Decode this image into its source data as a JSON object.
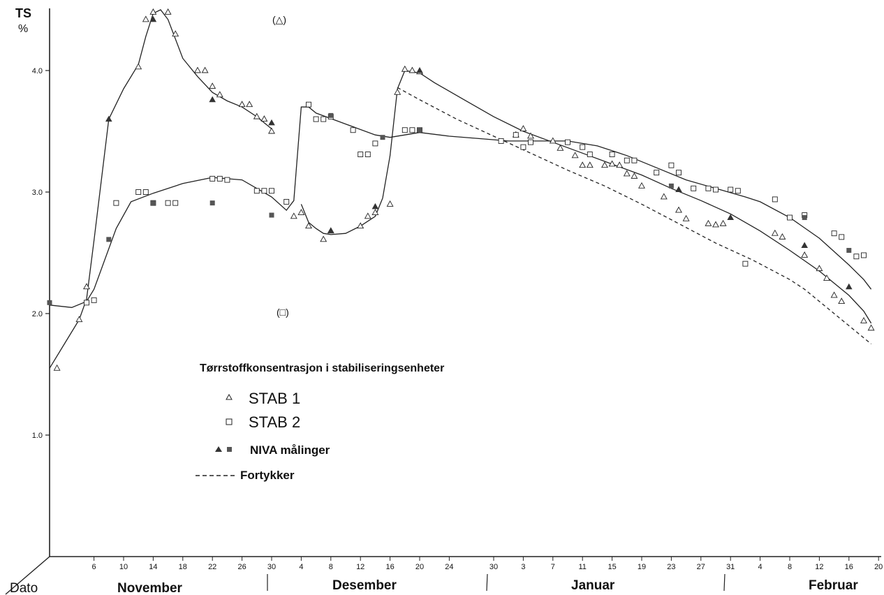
{
  "chart_data": {
    "type": "line",
    "ylabel": "TS",
    "yunit": "%",
    "ylim": [
      0,
      4.5
    ],
    "yticks": [
      "1.0",
      "2.0",
      "3.0",
      "4.0"
    ],
    "xlabel": "Dato",
    "xaxis_days": [
      0,
      105
    ],
    "months": [
      "November",
      "Desember",
      "Januar",
      "Februar"
    ],
    "day_ticks": [
      "6",
      "10",
      "14",
      "18",
      "22",
      "26",
      "30",
      "4",
      "8",
      "12",
      "16",
      "20",
      "24",
      "30",
      "3",
      "7",
      "11",
      "15",
      "19",
      "23",
      "27",
      "31",
      "4",
      "8",
      "12",
      "16",
      "20"
    ],
    "day_ticks_pos": [
      6,
      10,
      14,
      18,
      22,
      26,
      30,
      34,
      38,
      42,
      46,
      50,
      54,
      60,
      64,
      68,
      72,
      76,
      80,
      84,
      88,
      92,
      96,
      100,
      104,
      108,
      112
    ],
    "annotations": [
      "(△)",
      "(□)"
    ],
    "legend": {
      "title": "Tørrstoffkonsentrasjon i stabiliseringsenheter",
      "items": [
        {
          "symbol": "△",
          "label": "STAB 1"
        },
        {
          "symbol": "□",
          "label": "STAB 2"
        },
        {
          "symbol": "▲ ■",
          "label": "NIVA målinger"
        },
        {
          "symbol": "-----",
          "label": "Fortykker"
        }
      ]
    },
    "series": [
      {
        "name": "STAB 1",
        "marker": "triangle-open",
        "x": [
          1,
          4,
          5,
          12,
          13,
          14,
          16,
          17,
          20,
          21,
          22,
          23,
          26,
          27,
          28,
          29,
          30,
          33,
          34,
          35,
          37,
          38,
          42,
          43,
          44,
          46,
          47,
          48,
          49,
          50,
          63,
          64,
          65,
          68,
          69,
          71,
          72,
          73,
          75,
          76,
          77,
          78,
          79,
          80,
          83,
          85,
          86,
          89,
          90,
          91,
          98,
          99,
          102,
          104,
          105,
          106,
          107,
          110,
          111
        ],
        "y": [
          1.55,
          1.95,
          2.22,
          4.03,
          4.42,
          4.48,
          4.48,
          4.3,
          4.0,
          4.0,
          3.87,
          3.8,
          3.72,
          3.72,
          3.62,
          3.6,
          3.5,
          2.8,
          2.83,
          2.72,
          2.61,
          2.68,
          2.72,
          2.8,
          2.83,
          2.9,
          3.82,
          4.01,
          4.0,
          3.99,
          3.47,
          3.52,
          3.46,
          3.42,
          3.36,
          3.3,
          3.22,
          3.22,
          3.22,
          3.23,
          3.22,
          3.15,
          3.13,
          3.05,
          2.96,
          2.85,
          2.78,
          2.74,
          2.73,
          2.74,
          2.66,
          2.63,
          2.48,
          2.37,
          2.29,
          2.15,
          2.1,
          1.94,
          1.88
        ]
      },
      {
        "name": "STAB 2",
        "marker": "square-open",
        "x": [
          5,
          6,
          9,
          12,
          13,
          14,
          16,
          17,
          22,
          23,
          24,
          28,
          29,
          30,
          32,
          35,
          36,
          37,
          38,
          41,
          42,
          43,
          44,
          48,
          49,
          50,
          61,
          63,
          64,
          65,
          70,
          72,
          73,
          76,
          78,
          79,
          82,
          84,
          85,
          87,
          89,
          90,
          92,
          93,
          94,
          98,
          100,
          102,
          106,
          107,
          109,
          110
        ],
        "y": [
          2.09,
          2.11,
          2.91,
          3.0,
          3.0,
          2.91,
          2.91,
          2.91,
          3.11,
          3.11,
          3.1,
          3.01,
          3.01,
          3.01,
          2.92,
          3.72,
          3.6,
          3.6,
          3.62,
          3.51,
          3.31,
          3.31,
          3.4,
          3.51,
          3.51,
          3.51,
          3.42,
          3.47,
          3.37,
          3.41,
          3.41,
          3.37,
          3.31,
          3.31,
          3.26,
          3.26,
          3.16,
          3.22,
          3.16,
          3.03,
          3.03,
          3.02,
          3.02,
          3.01,
          2.41,
          2.94,
          2.79,
          2.81,
          2.66,
          2.63,
          2.47,
          2.48
        ]
      },
      {
        "name": "NIVA målinger (STAB 1)",
        "marker": "triangle-filled",
        "x": [
          8,
          14,
          22,
          30,
          38,
          44,
          50,
          85,
          92,
          102,
          108
        ],
        "y": [
          3.6,
          4.42,
          3.76,
          3.57,
          2.68,
          2.88,
          4.0,
          3.02,
          2.79,
          2.56,
          2.22
        ]
      },
      {
        "name": "NIVA målinger (STAB 2)",
        "marker": "square-filled",
        "x": [
          0,
          8,
          14,
          22,
          30,
          38,
          45,
          50,
          84,
          102,
          108
        ],
        "y": [
          2.09,
          2.61,
          2.91,
          2.91,
          2.81,
          3.63,
          3.45,
          3.51,
          3.05,
          2.79,
          2.52
        ]
      },
      {
        "name": "STAB 1 (kurve)",
        "marker": "none",
        "dash": "solid",
        "x": [
          0,
          2,
          4,
          5,
          6,
          8,
          10,
          12,
          13,
          14,
          15,
          16,
          18,
          20,
          22,
          24,
          26,
          28,
          30
        ],
        "y": [
          1.55,
          1.75,
          1.95,
          2.12,
          2.6,
          3.6,
          3.85,
          4.05,
          4.28,
          4.47,
          4.5,
          4.42,
          4.1,
          3.95,
          3.82,
          3.75,
          3.7,
          3.62,
          3.52
        ]
      },
      {
        "name": "STAB 1 (kurve)",
        "marker": "none",
        "dash": "solid",
        "x": [
          34,
          35,
          36,
          37,
          38,
          40,
          42,
          44,
          45,
          46,
          47,
          48,
          50,
          52,
          56,
          60,
          64,
          68,
          72,
          76,
          80,
          84,
          88,
          92,
          96,
          100,
          104,
          108,
          110,
          111
        ],
        "y": [
          2.9,
          2.75,
          2.7,
          2.66,
          2.65,
          2.66,
          2.72,
          2.8,
          2.95,
          3.3,
          3.85,
          4.0,
          3.98,
          3.9,
          3.76,
          3.62,
          3.5,
          3.41,
          3.32,
          3.23,
          3.14,
          3.03,
          2.93,
          2.82,
          2.68,
          2.52,
          2.35,
          2.15,
          2.02,
          1.92
        ]
      },
      {
        "name": "STAB 2 (kurve)",
        "marker": "none",
        "dash": "solid",
        "x": [
          0,
          3,
          5,
          6,
          9,
          11,
          14,
          18,
          22,
          26,
          30,
          32,
          33,
          34,
          35,
          36,
          40,
          44,
          46,
          48,
          50,
          54,
          58,
          62,
          66,
          70,
          74,
          78,
          82,
          86,
          90,
          94,
          96,
          100,
          104,
          108,
          110,
          111
        ],
        "y": [
          2.07,
          2.05,
          2.1,
          2.2,
          2.7,
          2.92,
          2.99,
          3.07,
          3.12,
          3.1,
          2.96,
          2.85,
          2.93,
          3.7,
          3.7,
          3.65,
          3.56,
          3.47,
          3.45,
          3.47,
          3.49,
          3.46,
          3.44,
          3.42,
          3.42,
          3.42,
          3.38,
          3.3,
          3.2,
          3.1,
          3.03,
          2.96,
          2.92,
          2.79,
          2.62,
          2.4,
          2.28,
          2.2
        ]
      },
      {
        "name": "Fortykker",
        "marker": "none",
        "dash": "dashed",
        "x": [
          47,
          50,
          55,
          60,
          65,
          70,
          75,
          80,
          85,
          90,
          95,
          100,
          102,
          104,
          106,
          108,
          110,
          111
        ],
        "y": [
          3.86,
          3.76,
          3.6,
          3.46,
          3.32,
          3.18,
          3.05,
          2.9,
          2.74,
          2.58,
          2.44,
          2.28,
          2.2,
          2.1,
          2.0,
          1.9,
          1.8,
          1.75
        ]
      }
    ]
  }
}
